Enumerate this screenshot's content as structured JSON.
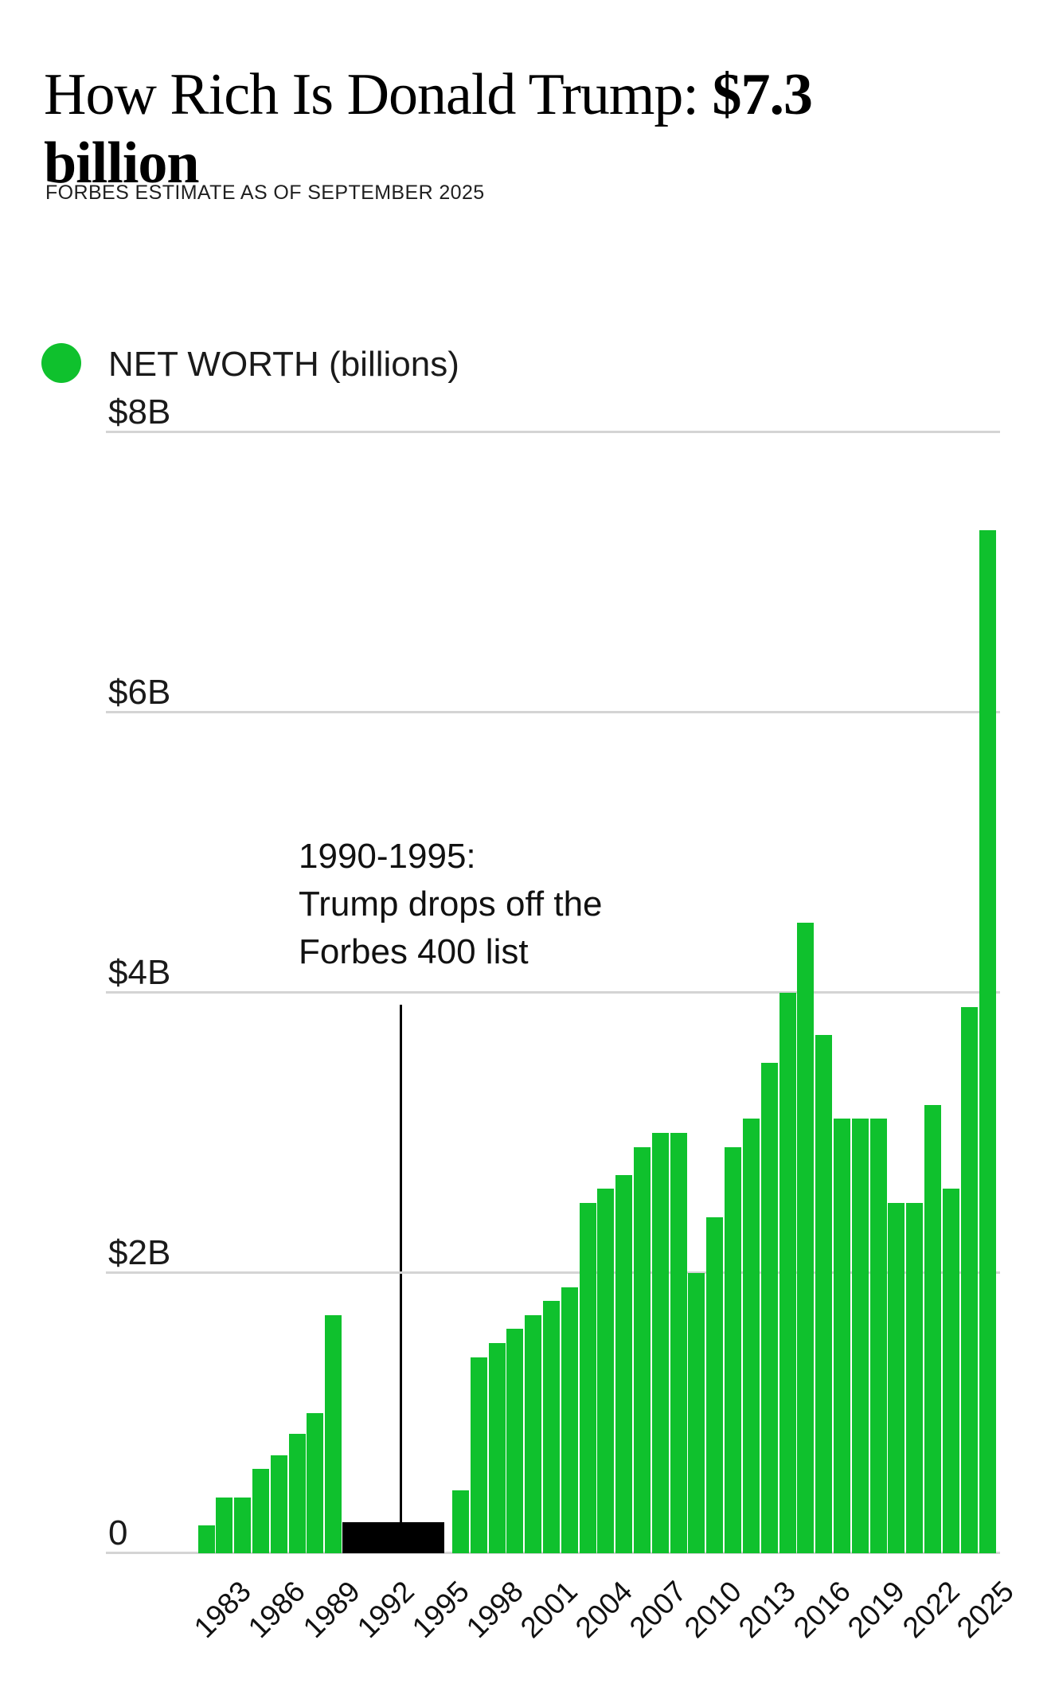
{
  "title": {
    "regular": "How Rich Is Donald Trump:",
    "bold_line1": "$7.3",
    "bold_line2": "billion"
  },
  "subtitle": "FORBES ESTIMATE AS OF SEPTEMBER 2025",
  "legend": {
    "label": "NET WORTH (billions)",
    "marker_color": "#0fc12d"
  },
  "annotation": {
    "lines": [
      "1990-1995:",
      "Trump drops off the",
      "Forbes 400 list"
    ]
  },
  "chart_data": {
    "type": "bar",
    "title": "How Rich Is Donald Trump: $7.3 billion",
    "series_name": "NET WORTH (billions)",
    "bar_color": "#0fc12d",
    "off_list_marker_color": "#000000",
    "grid": true,
    "legend_position": "top-left",
    "ylim": [
      0,
      8
    ],
    "y_gridlines": [
      {
        "label": "$8B",
        "value": 8
      },
      {
        "label": "$6B",
        "value": 6
      },
      {
        "label": "$4B",
        "value": 4
      },
      {
        "label": "$2B",
        "value": 2
      },
      {
        "label": "0",
        "value": 0
      }
    ],
    "x_tick_labels": [
      "1983",
      "1986",
      "1989",
      "1992",
      "1995",
      "1998",
      "2001",
      "2004",
      "2007",
      "2010",
      "2013",
      "2016",
      "2019",
      "2022",
      "2025"
    ],
    "points": [
      {
        "year": 1982,
        "value": 0.2
      },
      {
        "year": 1983,
        "value": 0.4
      },
      {
        "year": 1984,
        "value": 0.4
      },
      {
        "year": 1985,
        "value": 0.6
      },
      {
        "year": 1986,
        "value": 0.7
      },
      {
        "year": 1987,
        "value": 0.85
      },
      {
        "year": 1988,
        "value": 1.0
      },
      {
        "year": 1989,
        "value": 1.7
      },
      {
        "year": 1996,
        "value": 0.45
      },
      {
        "year": 1997,
        "value": 1.4
      },
      {
        "year": 1998,
        "value": 1.5
      },
      {
        "year": 1999,
        "value": 1.6
      },
      {
        "year": 2000,
        "value": 1.7
      },
      {
        "year": 2001,
        "value": 1.8
      },
      {
        "year": 2002,
        "value": 1.9
      },
      {
        "year": 2003,
        "value": 2.5
      },
      {
        "year": 2004,
        "value": 2.6
      },
      {
        "year": 2005,
        "value": 2.7
      },
      {
        "year": 2006,
        "value": 2.9
      },
      {
        "year": 2007,
        "value": 3.0
      },
      {
        "year": 2008,
        "value": 3.0
      },
      {
        "year": 2009,
        "value": 2.0
      },
      {
        "year": 2010,
        "value": 2.4
      },
      {
        "year": 2011,
        "value": 2.9
      },
      {
        "year": 2012,
        "value": 3.1
      },
      {
        "year": 2013,
        "value": 3.5
      },
      {
        "year": 2014,
        "value": 4.0
      },
      {
        "year": 2015,
        "value": 4.5
      },
      {
        "year": 2016,
        "value": 3.7
      },
      {
        "year": 2017,
        "value": 3.1
      },
      {
        "year": 2018,
        "value": 3.1
      },
      {
        "year": 2019,
        "value": 3.1
      },
      {
        "year": 2020,
        "value": 2.5
      },
      {
        "year": 2021,
        "value": 2.5
      },
      {
        "year": 2022,
        "value": 3.2
      },
      {
        "year": 2023,
        "value": 2.6
      },
      {
        "year": 2024,
        "value": 3.9
      },
      {
        "year": 2025,
        "value": 7.3
      }
    ],
    "off_list": {
      "from": 1990,
      "to": 1995,
      "marker_value": 0.22,
      "note": "1990-1995: Trump drops off the Forbes 400 list"
    }
  }
}
